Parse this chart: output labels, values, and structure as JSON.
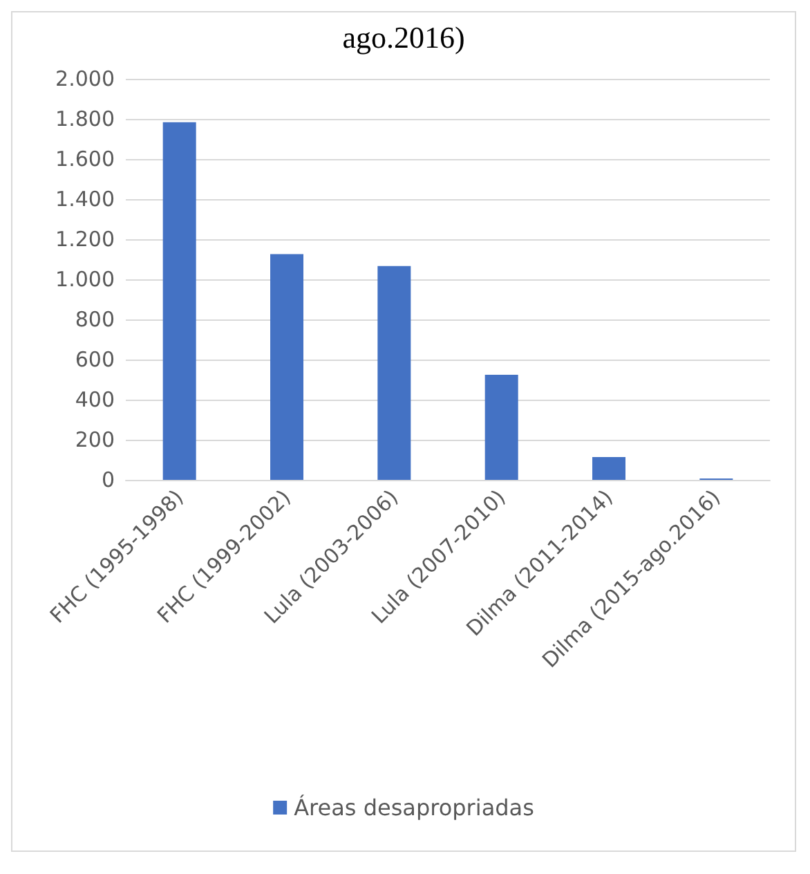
{
  "chart_data": {
    "type": "bar",
    "title": "ago.2016)",
    "categories": [
      "FHC (1995-1998)",
      "FHC (1999-2002)",
      "Lula (2003-2006)",
      "Lula (2007-2010)",
      "Dilma (2011-2014)",
      "Dilma (2015-ago.2016)"
    ],
    "series": [
      {
        "name": "Áreas desapropriadas",
        "color": "#4472c4",
        "values": [
          1784,
          1126,
          1066,
          524,
          114,
          7
        ]
      }
    ],
    "ylim": [
      0,
      2000
    ],
    "yticks": [
      0,
      200,
      400,
      600,
      800,
      {
        "value": 1000,
        "label": "1.000"
      },
      {
        "value": 1200,
        "label": "1.200"
      },
      {
        "value": 1400,
        "label": "1.400"
      },
      {
        "value": 1600,
        "label": "1.600"
      },
      {
        "value": 1800,
        "label": "1.800"
      },
      {
        "value": 2000,
        "label": "2.000"
      }
    ],
    "grid": "y",
    "legend": "bottom"
  }
}
